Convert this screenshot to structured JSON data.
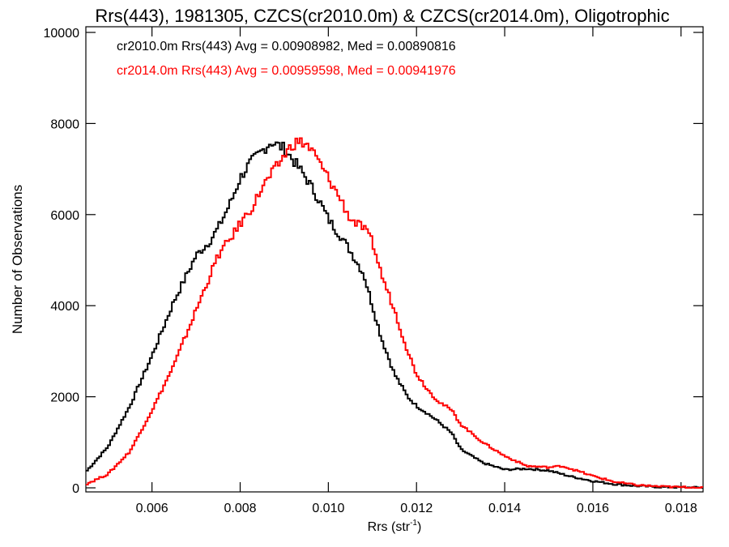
{
  "chart_data": {
    "type": "line",
    "title": "Rrs(443), 1981305, CZCS(cr2010.0m) & CZCS(cr2014.0m), Oligotrophic",
    "xlabel": "Rrs (str",
    "xlabel_sup": "-1",
    "xlabel_end": ")",
    "ylabel": "Number of Observations",
    "xlim": [
      0.0045,
      0.0185
    ],
    "ylim": [
      0,
      10000
    ],
    "xticks": [
      0.006,
      0.008,
      0.01,
      0.012,
      0.014,
      0.016,
      0.018
    ],
    "xtick_labels": [
      "0.006",
      "0.008",
      "0.010",
      "0.012",
      "0.014",
      "0.016",
      "0.018"
    ],
    "yticks": [
      0,
      2000,
      4000,
      6000,
      8000,
      10000
    ],
    "ytick_labels": [
      "0",
      "2000",
      "4000",
      "6000",
      "8000",
      "10000"
    ],
    "grid": false,
    "style": "histogram-step",
    "series": [
      {
        "color": "#000000",
        "annotation": "cr2010.0m Rrs(443) Avg = 0.00908982, Med = 0.00890816",
        "x": [
          0.0045,
          0.005,
          0.0055,
          0.006,
          0.0065,
          0.007,
          0.0073,
          0.0075,
          0.0078,
          0.008,
          0.0082,
          0.0085,
          0.0087,
          0.0088,
          0.009,
          0.0092,
          0.0095,
          0.0098,
          0.01,
          0.0103,
          0.0105,
          0.0108,
          0.011,
          0.0112,
          0.0115,
          0.0118,
          0.012,
          0.0123,
          0.0125,
          0.0128,
          0.013,
          0.0135,
          0.014,
          0.0145,
          0.015,
          0.0155,
          0.016,
          0.0165,
          0.017,
          0.0175,
          0.018,
          0.0185
        ],
        "y": [
          350,
          900,
          1800,
          2900,
          4100,
          5100,
          5400,
          5700,
          6300,
          6800,
          7100,
          7400,
          7600,
          7550,
          7450,
          7200,
          6800,
          6300,
          5900,
          5500,
          5200,
          4700,
          4000,
          3300,
          2500,
          2000,
          1800,
          1600,
          1450,
          1200,
          850,
          550,
          400,
          420,
          380,
          250,
          150,
          80,
          40,
          20,
          10,
          5
        ]
      },
      {
        "color": "#ff0000",
        "annotation": "cr2014.0m Rrs(443) Avg = 0.00959598, Med = 0.00941976",
        "x": [
          0.0045,
          0.005,
          0.0055,
          0.006,
          0.0065,
          0.007,
          0.0075,
          0.0078,
          0.008,
          0.0083,
          0.0085,
          0.0088,
          0.009,
          0.0092,
          0.0093,
          0.0095,
          0.0097,
          0.01,
          0.0103,
          0.0105,
          0.0108,
          0.011,
          0.0112,
          0.0115,
          0.0118,
          0.012,
          0.0123,
          0.0125,
          0.0128,
          0.013,
          0.0135,
          0.014,
          0.0145,
          0.015,
          0.0153,
          0.0155,
          0.016,
          0.0165,
          0.017,
          0.0175,
          0.018,
          0.0185
        ],
        "y": [
          80,
          300,
          800,
          1700,
          2700,
          3900,
          5100,
          5500,
          5800,
          6200,
          6600,
          7000,
          7300,
          7550,
          7600,
          7550,
          7300,
          6800,
          6300,
          5900,
          5700,
          5400,
          4700,
          3900,
          3000,
          2500,
          2100,
          1900,
          1700,
          1400,
          1000,
          700,
          480,
          450,
          480,
          420,
          260,
          130,
          60,
          30,
          15,
          5
        ]
      }
    ]
  }
}
